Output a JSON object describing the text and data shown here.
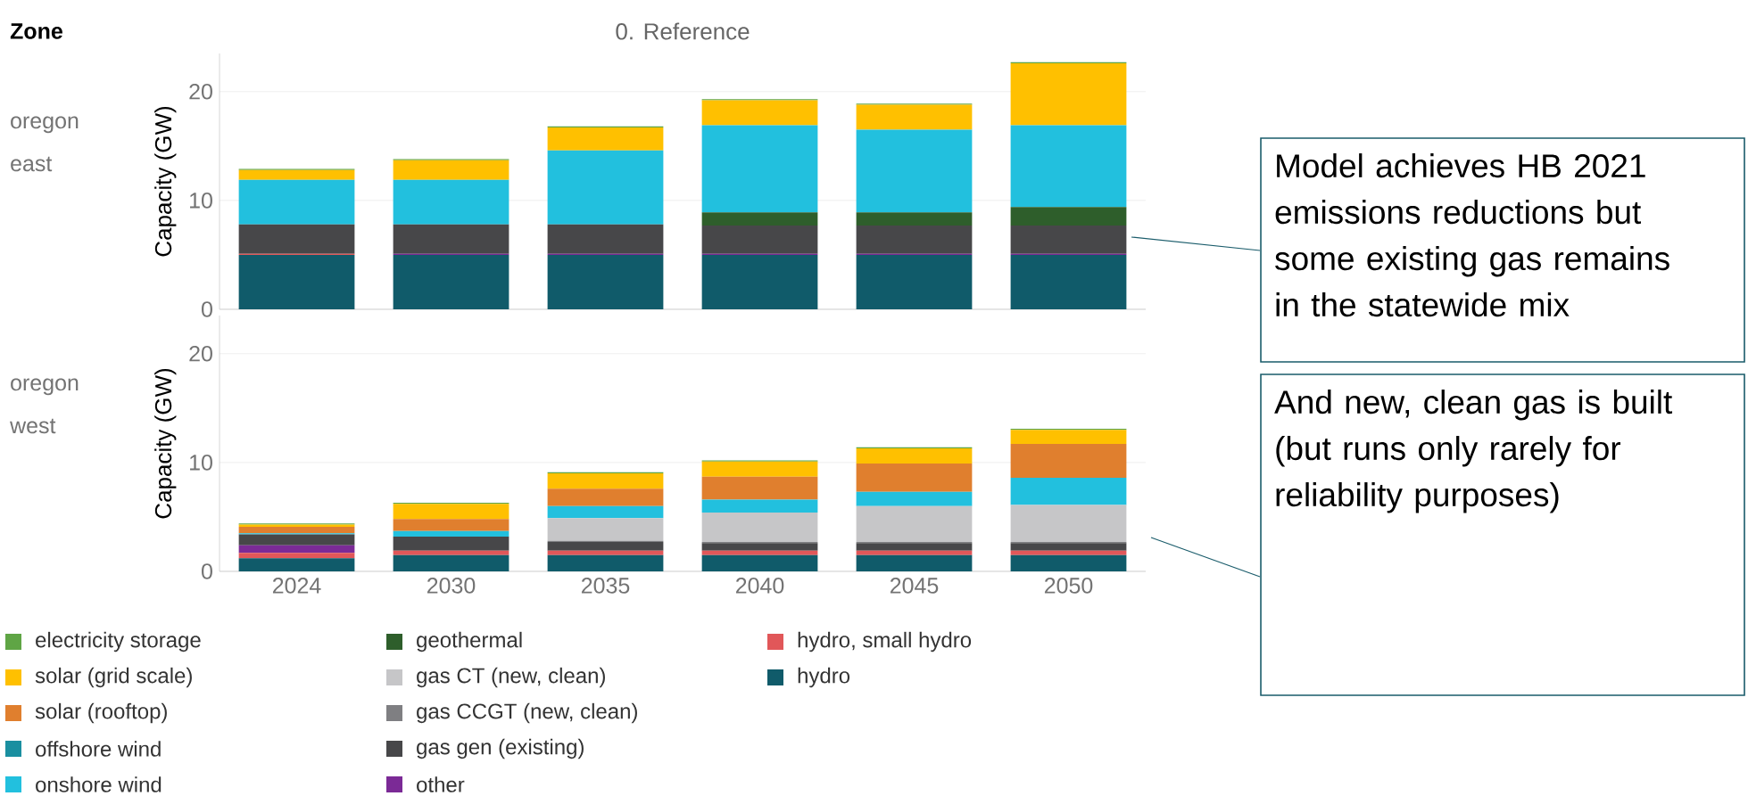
{
  "chart_data": [
    {
      "type": "bar",
      "title": "0. Reference",
      "subtitle": "oregon east",
      "ylabel": "Capacity (GW)",
      "categories": [
        "2024",
        "2030",
        "2035",
        "2040",
        "2045",
        "2050"
      ],
      "stacked": true,
      "ylim": [
        0,
        23.5
      ],
      "yticks": [
        0,
        10,
        20
      ],
      "grid": "y",
      "tick_labels": "y",
      "annotations": [
        "Zone",
        "Model achieves HB 2021 emissions reductions but some existing gas remains in the statewide mix"
      ],
      "series": [
        {
          "color": "#105b6a",
          "values": [
            5.0,
            5.0,
            5.0,
            5.0,
            5.0,
            5.0
          ]
        },
        {
          "color": "#e15759",
          "values": [
            0.1,
            0,
            0,
            0,
            0,
            0
          ]
        },
        {
          "color": "#7b2a96",
          "values": [
            0,
            0.1,
            0.1,
            0.1,
            0.1,
            0.1
          ]
        },
        {
          "color": "#474749",
          "values": [
            2.7,
            2.7,
            2.7,
            2.6,
            2.6,
            2.6
          ]
        },
        {
          "color": "#7f7f82",
          "values": [
            0,
            0,
            0,
            0,
            0,
            0
          ]
        },
        {
          "color": "#c6c6c8",
          "values": [
            0,
            0,
            0,
            null,
            null,
            null
          ]
        },
        {
          "color": "#2e5e2b",
          "values": [
            0,
            0,
            0,
            1.2,
            1.2,
            1.7
          ]
        },
        {
          "color": "#22c0de",
          "values": [
            4.1,
            4.1,
            6.8,
            8.0,
            7.6,
            7.5
          ]
        },
        {
          "color": "#1a8fa0",
          "values": [
            0,
            0,
            0,
            0,
            0,
            0
          ]
        },
        {
          "color": "#e07f2e",
          "values": [
            0,
            0,
            0,
            0,
            0,
            0
          ]
        },
        {
          "color": "#ffc000",
          "values": [
            0.9,
            1.8,
            2.1,
            2.3,
            2.3,
            5.7
          ]
        },
        {
          "color": "#5fa545",
          "values": [
            0.1,
            0.1,
            0.1,
            0.1,
            0.1,
            0.1
          ]
        }
      ]
    },
    {
      "type": "bar",
      "subtitle": "oregon west",
      "ylabel": "Capacity (GW)",
      "categories": [
        "2024",
        "2030",
        "2035",
        "2040",
        "2045",
        "2050"
      ],
      "stacked": true,
      "ylim": [
        0,
        23.5
      ],
      "yticks": [
        0,
        10,
        20
      ],
      "grid": "y",
      "legend": "bottom",
      "annotations": [
        "And new, clean gas is built (but runs only rarely for reliability purposes)"
      ],
      "series": [
        {
          "name": "hydro",
          "color": "#105b6a",
          "values": [
            1.2,
            1.5,
            1.5,
            1.5,
            1.5,
            1.5
          ]
        },
        {
          "name": "hydro, small hydro",
          "color": "#e15759",
          "values": [
            0.5,
            0.4,
            0.4,
            0.4,
            0.4,
            0.4
          ]
        },
        {
          "name": "other",
          "color": "#7b2a96",
          "values": [
            0.7,
            0,
            0,
            0,
            0,
            0
          ]
        },
        {
          "name": "gas gen (existing)",
          "color": "#474749",
          "values": [
            1.0,
            1.3,
            0.8,
            0.7,
            0.7,
            0.7
          ]
        },
        {
          "name": "gas CCGT (new, clean)",
          "color": "#7f7f82",
          "values": [
            0,
            0,
            0.1,
            0.1,
            0.1,
            0.1
          ]
        },
        {
          "name": "gas CT (new, clean)",
          "color": "#c6c6c8",
          "values": [
            0,
            0,
            2.1,
            2.7,
            3.3,
            3.4
          ]
        },
        {
          "name": "geothermal",
          "color": "#2e5e2b",
          "values": [
            0,
            0,
            0,
            0,
            0,
            0
          ]
        },
        {
          "name": "onshore wind",
          "color": "#22c0de",
          "values": [
            0.1,
            0.5,
            1.1,
            1.2,
            1.3,
            2.5
          ]
        },
        {
          "name": "offshore wind",
          "color": "#1a8fa0",
          "values": [
            0,
            0,
            0,
            0,
            0,
            0
          ]
        },
        {
          "name": "solar (rooftop)",
          "color": "#e07f2e",
          "values": [
            0.6,
            1.1,
            1.6,
            2.1,
            2.6,
            3.1
          ]
        },
        {
          "name": "solar (grid scale)",
          "color": "#ffc000",
          "values": [
            0.2,
            1.4,
            1.4,
            1.4,
            1.4,
            1.3
          ]
        },
        {
          "name": "electricity storage",
          "color": "#5fa545",
          "values": [
            0.1,
            0.1,
            0.1,
            0.1,
            0.1,
            0.1
          ]
        }
      ]
    }
  ]
}
